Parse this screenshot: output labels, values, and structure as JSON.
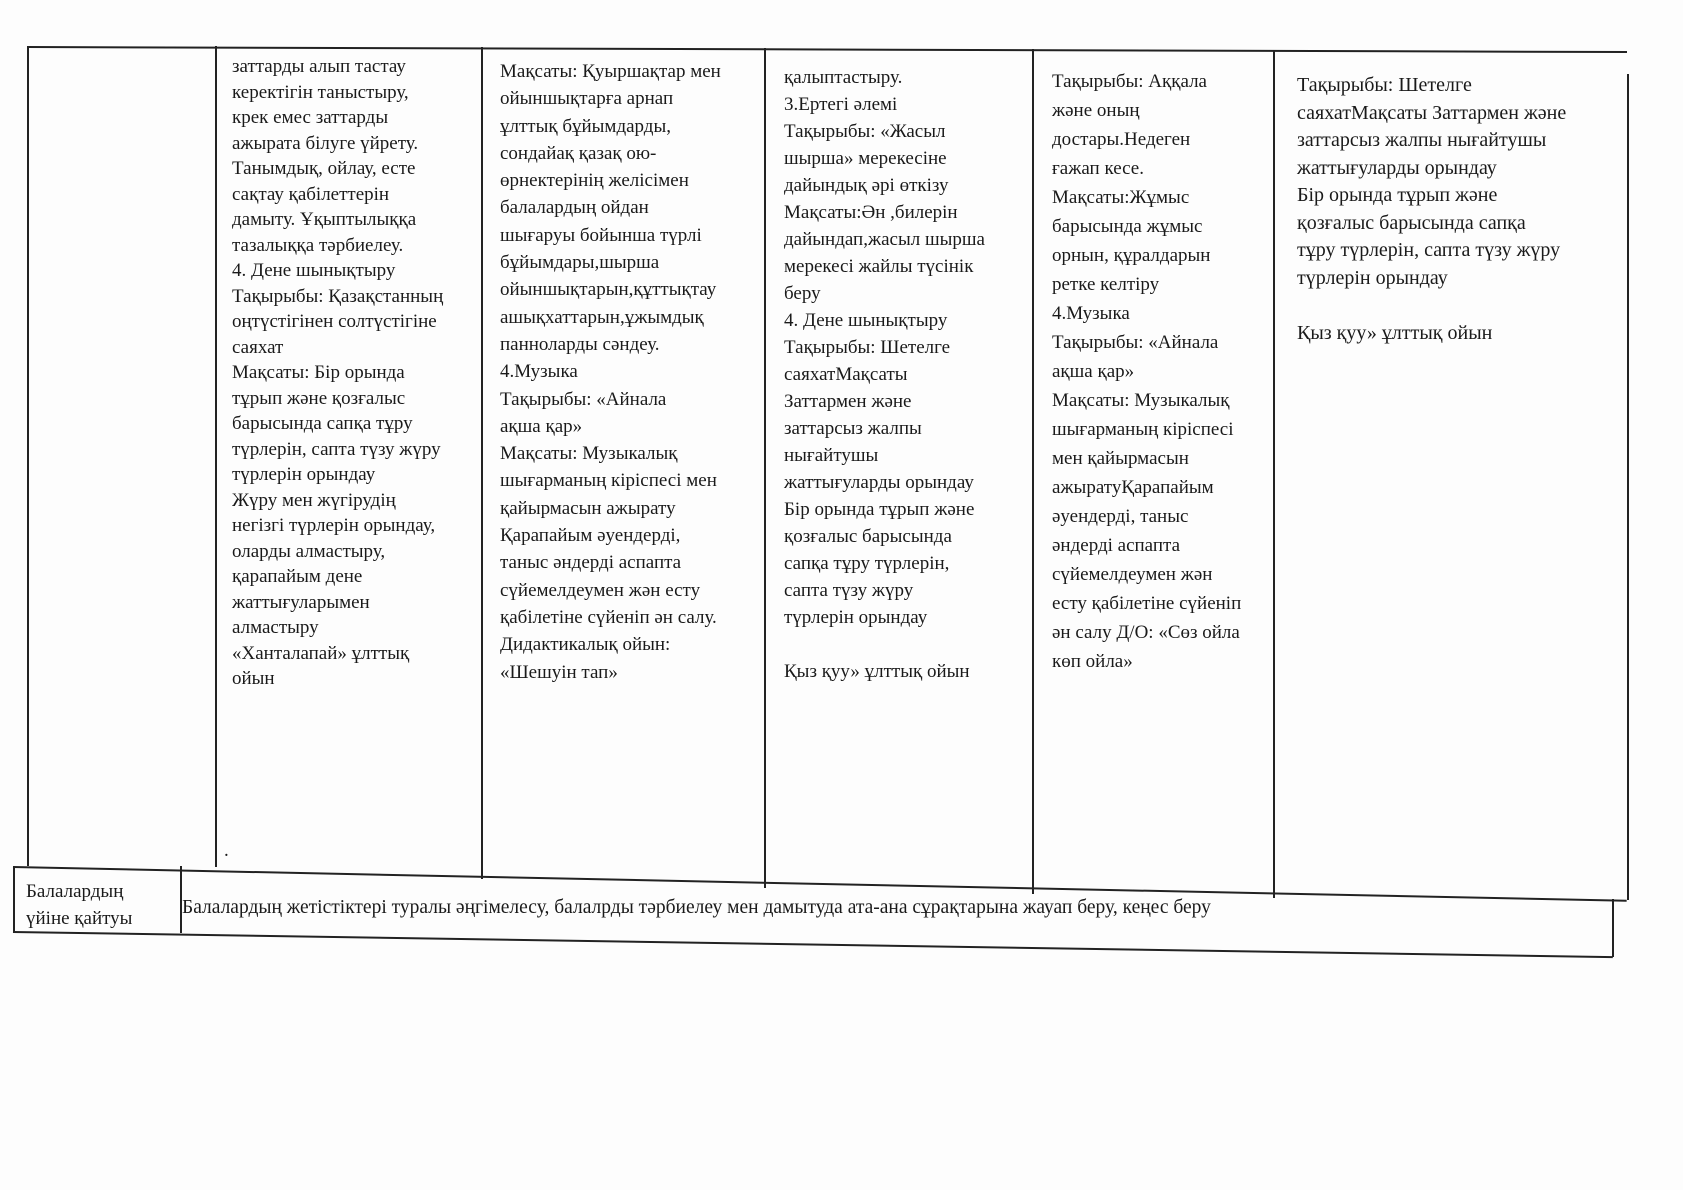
{
  "columns": [
    {
      "text": "заттарды алып тастау\nкеректігін таныстыру,\nкрек емес заттарды\nажырата білуге үйрету.\nТанымдық, ойлау, есте\nсақтау қабілеттерін\nдамыту. Ұқыптылыққа\nтазалыққа тәрбиелеу.\n4. Дене шынықтыру\nТақырыбы: Қазақстанның\nоңтүстігінен солтүстігіне\nсаяхат\nМақсаты: Бір орында\nтұрып және қозғалыс\nбарысында сапқа тұру\nтүрлерін, сапта түзу жүру\nтүрлерін орындау\nЖүру мен жүгірудің\nнегізгі түрлерін орындау,\nоларды алмастыру,\nқарапайым дене\nжаттығуларымен\nалмастыру\n«Ханталапай» ұлттық\nойын"
    },
    {
      "text": "Мақсаты: Қуыршақтар мен\nойыншықтарға арнап\nұлттық бұйымдарды,\nсондайақ қазақ ою-\nөрнектерінің желісімен\nбалалардың ойдан\nшығаруы бойынша түрлі\nбұйымдары,шырша\nойыншықтарын,құттықтау\nашықхаттарын,ұжымдық\nпанноларды сәндеу.\n4.Музыка\nТақырыбы: «Айнала\nақша қар»\nМақсаты: Музыкалық\nшығарманың кіріспесі мен\nқайырмасын ажырату\nҚарапайым әуендерді,\nтаныс әндерді аспапта\nсүйемелдеумен жән есту\nқабілетіне сүйеніп ән салу.\nДидактикалық ойын:\n«Шешуін тап»"
    },
    {
      "text": "қалыптастыру.\n3.Ертегі әлемі\nТақырыбы: «Жасыл\nшырша» мерекесіне\nдайындық  әрі өткізу\nМақсаты:Ән ,билерін\nдайындап,жасыл шырша\nмерекесі жайлы түсінік\nберу\n4. Дене шынықтыру\nТақырыбы: Шетелге\nсаяхатМақсаты\nЗаттармен және\nзаттарсыз жалпы\nнығайтушы\nжаттығуларды орындау\nБір орында тұрып және\nқозғалыс барысында\nсапқа тұру түрлерін,\nсапта түзу жүру\nтүрлерін орындау\n\nҚыз қуу» ұлттық ойын"
    },
    {
      "text": "Тақырыбы: Аққала\nжәне оның\nдостары.Недеген\nғажап кесе.\n Мақсаты:Жұмыс\nбарысында жұмыс\nорнын, құралдарын\nретке келтіру\n4.Музыка\nТақырыбы: «Айнала\nақша қар»\nМақсаты: Музыкалық\nшығарманың кіріспесі\nмен қайырмасын\nажыратуҚарапайым\nәуендерді, таныс\nәндерді аспапта\nсүйемелдеумен жән\nесту қабілетіне сүйеніп\nән салу Д/О: «Сөз ойла\nкөп ойла»"
    },
    {
      "text": "Тақырыбы: Шетелге\nсаяхатМақсаты Заттармен және\nзаттарсыз жалпы нығайтушы\nжаттығуларды орындау\nБір орында тұрып және\nқозғалыс барысында сапқа\nтұру түрлерін, сапта түзу жүру\nтүрлерін орындау\n\n Қыз қуу» ұлттық ойын"
    }
  ],
  "stray_mark": ".",
  "bottom_row": {
    "label": "Балалардың\nүйіне  қайтуы",
    "text": "Балалардың жетістіктері туралы әңгімелесу, балалрды тәрбиелеу мен дамытуда ата-ана сұрақтарына жауап беру, кеңес беру"
  }
}
